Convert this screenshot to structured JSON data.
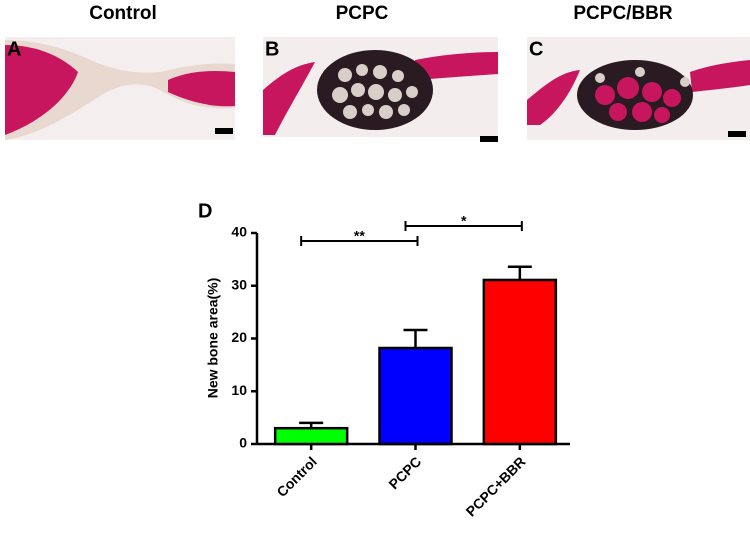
{
  "panels": [
    {
      "title": "Control",
      "letter": "A"
    },
    {
      "title": "PCPC",
      "letter": "B"
    },
    {
      "title": "PCPC/BBR",
      "letter": "C"
    }
  ],
  "chart_data": {
    "type": "bar",
    "panel_label": "D",
    "y_label": "New bone area(%)",
    "categories": [
      "Control",
      "PCPC",
      "PCPC+BBR"
    ],
    "values": [
      3.0,
      18.2,
      31.1
    ],
    "errors": [
      1.0,
      3.4,
      2.5
    ],
    "colors": [
      "#00ff00",
      "#0000ff",
      "#ff0000"
    ],
    "ylim": [
      0,
      40
    ],
    "yticks": [
      0,
      10,
      20,
      30,
      40
    ],
    "comparisons": [
      {
        "from": 0,
        "to": 1,
        "label": "**"
      },
      {
        "from": 1,
        "to": 2,
        "label": "*"
      }
    ]
  }
}
